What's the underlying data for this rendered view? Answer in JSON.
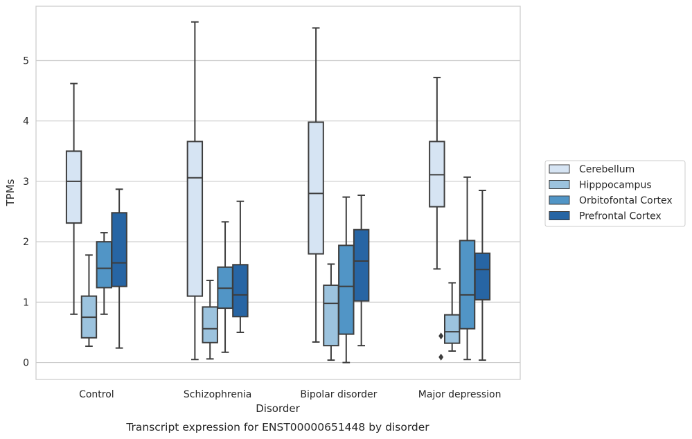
{
  "chart_data": {
    "type": "boxplot",
    "caption": "Transcript expression for ENST00000651448 by disorder",
    "xlabel": "Disorder",
    "ylabel": "TPMs",
    "ylim": [
      -0.28,
      5.9
    ],
    "yticks": [
      0,
      1,
      2,
      3,
      4,
      5
    ],
    "grid": "horizontal",
    "legend_position": "right",
    "categories": [
      "Control",
      "Schizophrenia",
      "Bipolar disorder",
      "Major depression"
    ],
    "series": [
      {
        "name": "Cerebellum",
        "color": "#d6e4f3",
        "boxes": [
          {
            "whislo": 0.8,
            "q1": 2.31,
            "med": 3.0,
            "q3": 3.5,
            "whishi": 4.62,
            "fliers": []
          },
          {
            "whislo": 0.05,
            "q1": 1.1,
            "med": 3.06,
            "q3": 3.66,
            "whishi": 5.64,
            "fliers": []
          },
          {
            "whislo": 0.34,
            "q1": 1.8,
            "med": 2.8,
            "q3": 3.98,
            "whishi": 5.54,
            "fliers": []
          },
          {
            "whislo": 1.55,
            "q1": 2.58,
            "med": 3.11,
            "q3": 3.66,
            "whishi": 4.72,
            "fliers": []
          }
        ]
      },
      {
        "name": "Hipppocampus",
        "color": "#9cc3de",
        "boxes": [
          {
            "whislo": 0.27,
            "q1": 0.41,
            "med": 0.75,
            "q3": 1.1,
            "whishi": 1.78,
            "fliers": []
          },
          {
            "whislo": 0.06,
            "q1": 0.33,
            "med": 0.56,
            "q3": 0.92,
            "whishi": 1.36,
            "fliers": []
          },
          {
            "whislo": 0.04,
            "q1": 0.28,
            "med": 0.98,
            "q3": 1.28,
            "whishi": 1.63,
            "fliers": []
          },
          {
            "whislo": 0.19,
            "q1": 0.32,
            "med": 0.51,
            "q3": 0.79,
            "whishi": 1.32,
            "fliers": [
              0.44,
              0.09
            ]
          }
        ]
      },
      {
        "name": "Orbitofontal Cortex",
        "color": "#5195c6",
        "boxes": [
          {
            "whislo": 0.8,
            "q1": 1.24,
            "med": 1.56,
            "q3": 2.0,
            "whishi": 2.15,
            "fliers": []
          },
          {
            "whislo": 0.17,
            "q1": 0.9,
            "med": 1.23,
            "q3": 1.58,
            "whishi": 2.33,
            "fliers": []
          },
          {
            "whislo": 0.0,
            "q1": 0.47,
            "med": 1.26,
            "q3": 1.94,
            "whishi": 2.74,
            "fliers": []
          },
          {
            "whislo": 0.05,
            "q1": 0.56,
            "med": 1.12,
            "q3": 2.02,
            "whishi": 3.07,
            "fliers": []
          }
        ]
      },
      {
        "name": "Prefrontal Cortex",
        "color": "#2765a4",
        "boxes": [
          {
            "whislo": 0.24,
            "q1": 1.26,
            "med": 1.65,
            "q3": 2.48,
            "whishi": 2.87,
            "fliers": []
          },
          {
            "whislo": 0.5,
            "q1": 0.76,
            "med": 1.12,
            "q3": 1.62,
            "whishi": 2.67,
            "fliers": []
          },
          {
            "whislo": 0.28,
            "q1": 1.02,
            "med": 1.68,
            "q3": 2.2,
            "whishi": 2.77,
            "fliers": []
          },
          {
            "whislo": 0.04,
            "q1": 1.04,
            "med": 1.54,
            "q3": 1.81,
            "whishi": 2.85,
            "fliers": []
          }
        ]
      }
    ]
  }
}
